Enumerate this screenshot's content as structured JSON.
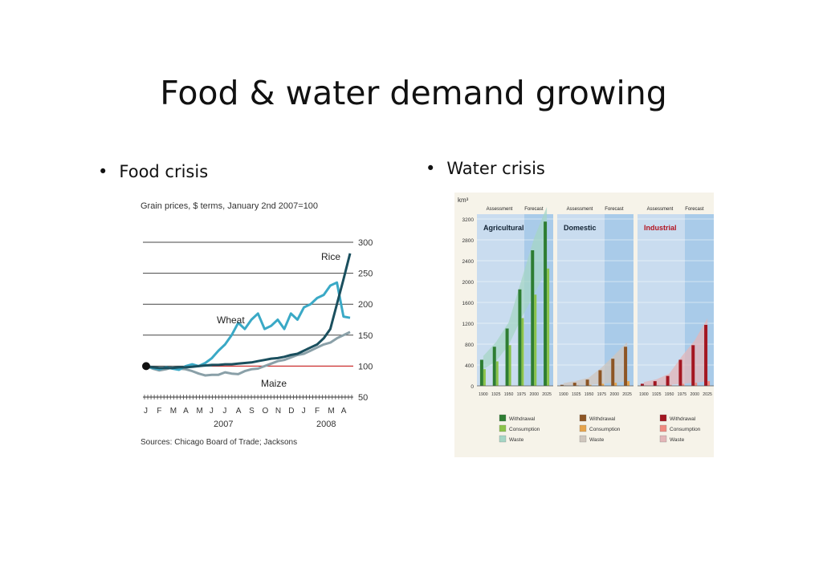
{
  "slide": {
    "title": "Food & water demand growing",
    "bullets": [
      "Food crisis",
      "Water crisis"
    ]
  },
  "chart_data": [
    {
      "type": "line",
      "title": "Grain prices, $ terms, January 2nd 2007=100",
      "source": "Sources: Chicago Board of Trade; Jacksons",
      "x_ticks": [
        "J",
        "F",
        "M",
        "A",
        "M",
        "J",
        "J",
        "A",
        "S",
        "O",
        "N",
        "D",
        "J",
        "F",
        "M",
        "A"
      ],
      "x_years": [
        "2007",
        "2008"
      ],
      "y_ticks": [
        50,
        100,
        150,
        200,
        250,
        300
      ],
      "ylim": [
        50,
        300
      ],
      "x": [
        0,
        0.5,
        1,
        1.5,
        2,
        2.5,
        3,
        3.5,
        4,
        4.5,
        5,
        5.5,
        6,
        6.5,
        7,
        7.5,
        8,
        8.5,
        9,
        9.5,
        10,
        10.5,
        11,
        11.5,
        12,
        12.5,
        13,
        13.5,
        14,
        14.5,
        15,
        15.5
      ],
      "series": [
        {
          "name": "Rice",
          "color": "#1a4f5e",
          "values": [
            100,
            98,
            97,
            97,
            97,
            98,
            98,
            99,
            100,
            101,
            102,
            102,
            103,
            103,
            104,
            105,
            106,
            108,
            110,
            112,
            113,
            115,
            118,
            120,
            125,
            130,
            135,
            145,
            160,
            200,
            240,
            282
          ]
        },
        {
          "name": "Wheat",
          "color": "#3aa9c6",
          "values": [
            100,
            97,
            95,
            98,
            96,
            94,
            100,
            103,
            100,
            105,
            113,
            125,
            135,
            150,
            170,
            160,
            175,
            185,
            160,
            165,
            175,
            160,
            185,
            175,
            195,
            200,
            210,
            215,
            230,
            235,
            180,
            178
          ]
        },
        {
          "name": "Maize",
          "color": "#8aa0a8",
          "values": [
            100,
            96,
            93,
            95,
            98,
            96,
            95,
            92,
            88,
            85,
            86,
            86,
            90,
            88,
            87,
            92,
            95,
            96,
            100,
            104,
            108,
            110,
            114,
            118,
            120,
            125,
            130,
            135,
            138,
            145,
            150,
            155
          ]
        }
      ],
      "annotations": {
        "red_line_value": 100
      }
    },
    {
      "type": "bar",
      "title": "",
      "ylabel": "km³",
      "ylim": [
        0,
        3200
      ],
      "y_ticks": [
        0,
        400,
        800,
        1200,
        1600,
        2000,
        2400,
        2800,
        3200
      ],
      "categories": [
        "1900",
        "1925",
        "1950",
        "1975",
        "2000",
        "2025"
      ],
      "header_labels": [
        "Assessment",
        "Forecast"
      ],
      "panels": [
        {
          "name": "Agricultural",
          "withdrawal_color": "#2e7d32",
          "consumption_color": "#8bc34a",
          "waste_color": "#a5d6c5",
          "withdrawal": [
            500,
            750,
            1100,
            1850,
            2600,
            3150
          ],
          "consumption": [
            320,
            470,
            780,
            1300,
            1750,
            2250
          ]
        },
        {
          "name": "Domestic",
          "withdrawal_color": "#8d5524",
          "consumption_color": "#e6a44c",
          "waste_color": "#cfc6bd",
          "withdrawal": [
            20,
            60,
            120,
            300,
            520,
            750
          ],
          "consumption": [
            5,
            10,
            20,
            40,
            60,
            90
          ]
        },
        {
          "name": "Industrial",
          "withdrawal_color": "#a31621",
          "consumption_color": "#ef8a80",
          "waste_color": "#e3b6b8",
          "withdrawal": [
            40,
            90,
            190,
            500,
            780,
            1170
          ],
          "consumption": [
            5,
            10,
            20,
            40,
            60,
            90
          ]
        }
      ],
      "legend": [
        [
          "Withdrawal",
          "Consumption",
          "Waste"
        ],
        [
          "Withdrawal",
          "Consumption",
          "Waste"
        ],
        [
          "Withdrawal",
          "Consumption",
          "Waste"
        ]
      ]
    }
  ]
}
